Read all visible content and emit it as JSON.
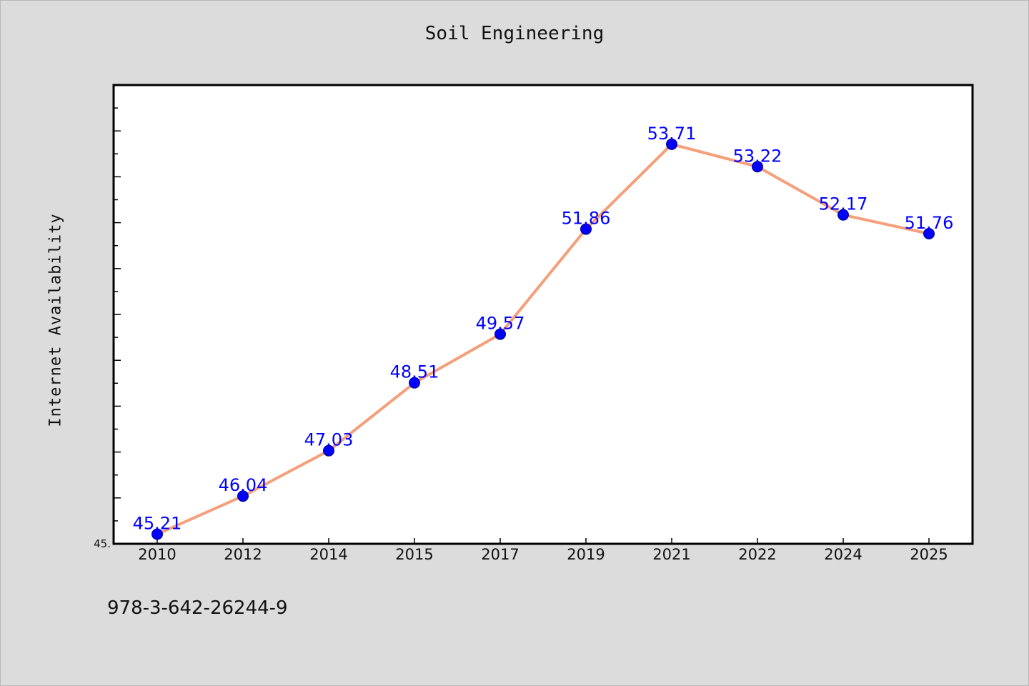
{
  "chart_data": {
    "type": "line",
    "title": "Soil Engineering",
    "ylabel": "Internet Availability",
    "xlabel": "",
    "categories": [
      "2010",
      "2012",
      "2014",
      "2015",
      "2017",
      "2019",
      "2021",
      "2022",
      "2024",
      "2025"
    ],
    "series": [
      {
        "values": [
          45.21,
          46.04,
          47.03,
          48.51,
          49.57,
          51.86,
          53.71,
          53.22,
          52.17,
          51.76
        ],
        "data_labels": [
          "45.21",
          "46.04",
          "47.03",
          "48.51",
          "49.57",
          "51.86",
          "53.71",
          "53.22",
          "52.17",
          "51.76"
        ]
      }
    ],
    "ylim": [
      45.0,
      55.0
    ],
    "y_min_tick_label": "45.",
    "grid": false,
    "colors": {
      "line": "#f4a07a",
      "marker": "#0000ff",
      "marker_edge": "#000080",
      "data_label": "#0000ff",
      "plot_background": "#ffffff",
      "figure_background": "#dcdcdc"
    }
  },
  "footer": {
    "identifier": "978-3-642-26244-9"
  }
}
